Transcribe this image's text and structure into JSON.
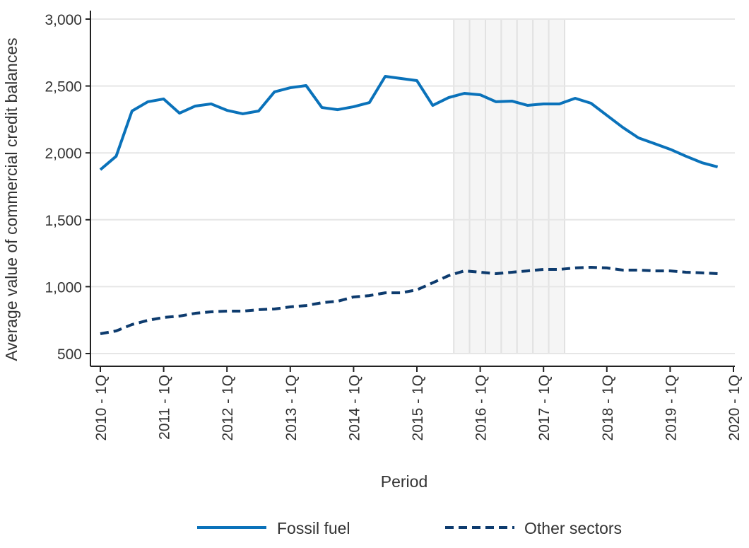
{
  "chart_data": {
    "type": "line",
    "title": "",
    "xlabel": "Period",
    "ylabel": "Average value of commercial credit balances",
    "ylim": [
      500,
      3000
    ],
    "yticks": [
      500,
      1000,
      1500,
      2000,
      2500,
      3000
    ],
    "ytick_labels": [
      "500",
      "1,000",
      "1,500",
      "2,000",
      "2,500",
      "3,000"
    ],
    "xtick_labels": [
      "2010 - 1Q",
      "2011 - 1Q",
      "2012 - 1Q",
      "2013 - 1Q",
      "2014 - 1Q",
      "2015 - 1Q",
      "2016 - 1Q",
      "2017 - 1Q",
      "2018 - 1Q",
      "2019 - 1Q",
      "2020 - 1Q"
    ],
    "x_start": "2010 - 1Q",
    "x_frequency": "quarterly",
    "grid": "horizontal",
    "legend_position": "bottom",
    "shaded_period": {
      "from": "2015 - 4Q",
      "to": "2017 - 2Q",
      "color": "#f5f5f5"
    },
    "series": [
      {
        "name": "Fossil fuel",
        "style": "solid",
        "color": "#0a72ba",
        "values": [
          1874,
          1975,
          2313,
          2382,
          2403,
          2297,
          2350,
          2366,
          2318,
          2292,
          2313,
          2456,
          2487,
          2503,
          2339,
          2323,
          2345,
          2376,
          2572,
          2556,
          2540,
          2355,
          2413,
          2445,
          2434,
          2382,
          2387,
          2355,
          2366,
          2366,
          2408,
          2371,
          2281,
          2191,
          2112,
          2070,
          2027,
          1975,
          1927,
          1895
        ]
      },
      {
        "name": "Other sectors",
        "style": "dashed",
        "color": "#0d3b6e",
        "values": [
          648,
          669,
          717,
          748,
          770,
          780,
          801,
          812,
          817,
          817,
          828,
          833,
          849,
          859,
          880,
          891,
          923,
          933,
          954,
          954,
          976,
          1029,
          1082,
          1118,
          1108,
          1097,
          1108,
          1118,
          1129,
          1129,
          1140,
          1145,
          1140,
          1124,
          1124,
          1118,
          1118,
          1108,
          1103,
          1097
        ]
      }
    ]
  }
}
